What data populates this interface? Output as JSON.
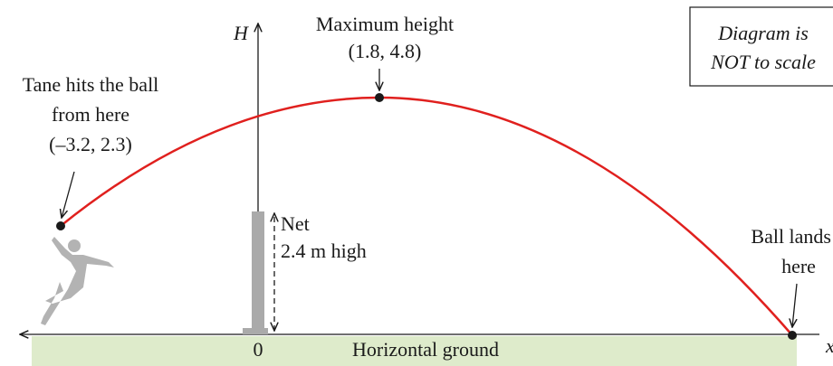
{
  "axes": {
    "vertical": "H",
    "horizontal": "x",
    "origin": "0"
  },
  "ground": "Horizontal ground",
  "net": {
    "label": "Net",
    "height": "2.4 m high"
  },
  "launch": {
    "lines": [
      "Tane hits the ball",
      "from here"
    ],
    "coords": "(–3.2, 2.3)"
  },
  "peak": {
    "label": "Maximum height",
    "coords": "(1.8, 4.8)"
  },
  "landing": {
    "lines": [
      "Ball lands",
      "here"
    ]
  },
  "note": [
    "Diagram is",
    "NOT to scale"
  ]
}
